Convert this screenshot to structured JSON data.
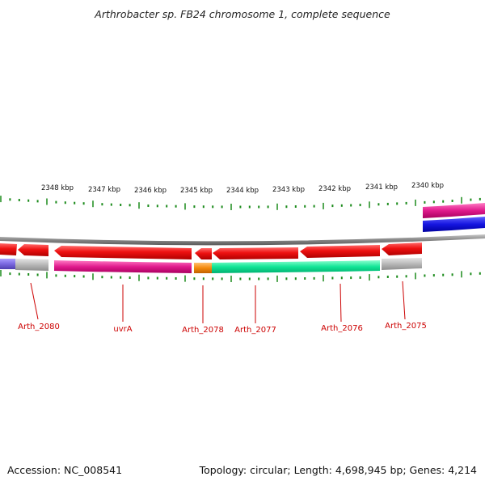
{
  "title": "Arthrobacter sp. FB24 chromosome 1, complete sequence",
  "footer": {
    "accession": "Accession: NC_008541",
    "summary": "Topology: circular; Length: 4,698,945 bp; Genes: 4,214"
  },
  "ticks": [
    "2348 kbp",
    "2347 kbp",
    "2346 kbp",
    "2345 kbp",
    "2344 kbp",
    "2343 kbp",
    "2342 kbp",
    "2341 kbp",
    "2340 kbp"
  ],
  "genes": [
    "Arth_2080",
    "uvrA",
    "Arth_2078",
    "Arth_2077",
    "Arth_2076",
    "Arth_2075"
  ],
  "colors": {
    "cds": "#ee1111",
    "track_magenta": "#e01a8c",
    "track_green": "#11e596",
    "track_orange": "#f58a0c",
    "track_gray": "#b8b8b8",
    "track_blue": "#1515e0",
    "track_purple": "#7a68e0",
    "backbone": "#888888",
    "tick": "#1a8a1a",
    "label": "#cc0000"
  }
}
